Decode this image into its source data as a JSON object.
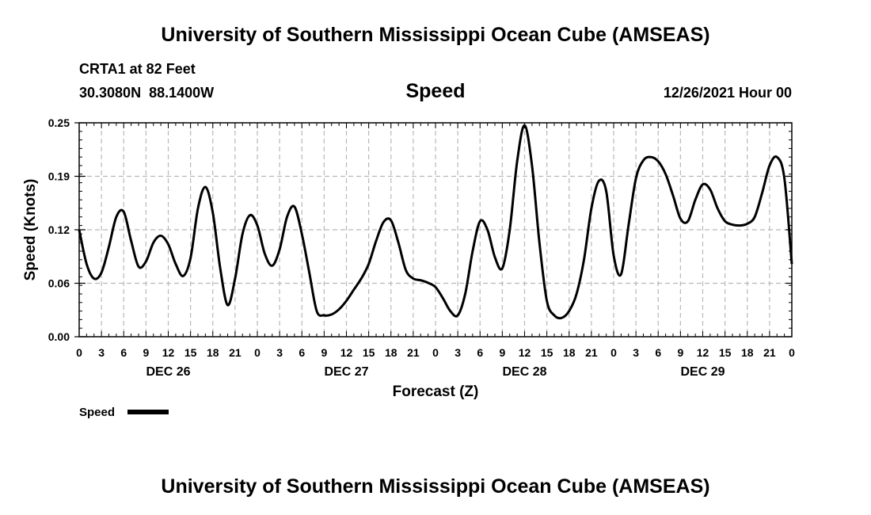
{
  "header": {
    "title_top": "University of Southern Mississippi Ocean Cube (AMSEAS)",
    "station": "CRTA1 at 82 Feet",
    "coords": "30.3080N  88.1400W",
    "variable": "Speed",
    "datetime": "12/26/2021 Hour 00",
    "title_bottom": "University of Southern Mississippi Ocean Cube (AMSEAS)"
  },
  "legend": {
    "label": "Speed"
  },
  "chart_data": {
    "type": "line",
    "title": "Speed",
    "xlabel": "Forecast (Z)",
    "ylabel": "Speed (Knots)",
    "xlim": [
      0,
      96
    ],
    "ylim": [
      0,
      0.25
    ],
    "y_ticks": [
      "0.00",
      "0.06",
      "0.12",
      "0.19",
      "0.25"
    ],
    "y_tick_values": [
      0,
      0.0625,
      0.125,
      0.1875,
      0.25
    ],
    "x_tick_labels": [
      "0",
      "3",
      "6",
      "9",
      "12",
      "15",
      "18",
      "21",
      "0",
      "3",
      "6",
      "9",
      "12",
      "15",
      "18",
      "21",
      "0",
      "3",
      "6",
      "9",
      "12",
      "15",
      "18",
      "21",
      "0",
      "3",
      "6",
      "9",
      "12",
      "15",
      "18",
      "21",
      "0"
    ],
    "day_labels": [
      {
        "label": "DEC 26",
        "hour": 12
      },
      {
        "label": "DEC 27",
        "hour": 36
      },
      {
        "label": "DEC 28",
        "hour": 60
      },
      {
        "label": "DEC 29",
        "hour": 84
      }
    ],
    "grid": true,
    "series": [
      {
        "name": "Speed",
        "color": "#000000",
        "x": [
          0,
          1,
          2,
          3,
          4,
          5,
          6,
          7,
          8,
          9,
          10,
          11,
          12,
          13,
          14,
          15,
          16,
          17,
          18,
          19,
          20,
          21,
          22,
          23,
          24,
          25,
          26,
          27,
          28,
          29,
          30,
          31,
          32,
          33,
          34,
          35,
          36,
          37,
          38,
          39,
          40,
          41,
          42,
          43,
          44,
          45,
          46,
          47,
          48,
          49,
          50,
          51,
          52,
          53,
          54,
          55,
          56,
          57,
          58,
          59,
          60,
          61,
          62,
          63,
          64,
          65,
          66,
          67,
          68,
          69,
          70,
          71,
          72,
          73,
          74,
          75,
          76,
          77,
          78,
          79,
          80,
          81,
          82,
          83,
          84,
          85,
          86,
          87,
          88,
          89,
          90,
          91,
          92,
          93,
          94,
          95,
          96
        ],
        "values": [
          0.125,
          0.085,
          0.068,
          0.075,
          0.105,
          0.14,
          0.146,
          0.112,
          0.082,
          0.088,
          0.11,
          0.118,
          0.108,
          0.085,
          0.071,
          0.092,
          0.15,
          0.175,
          0.145,
          0.08,
          0.037,
          0.068,
          0.12,
          0.142,
          0.13,
          0.097,
          0.083,
          0.102,
          0.14,
          0.152,
          0.12,
          0.075,
          0.03,
          0.025,
          0.026,
          0.032,
          0.042,
          0.055,
          0.068,
          0.085,
          0.112,
          0.134,
          0.136,
          0.11,
          0.078,
          0.068,
          0.066,
          0.063,
          0.058,
          0.045,
          0.03,
          0.025,
          0.05,
          0.1,
          0.135,
          0.125,
          0.093,
          0.08,
          0.125,
          0.205,
          0.247,
          0.2,
          0.11,
          0.042,
          0.025,
          0.022,
          0.03,
          0.05,
          0.09,
          0.15,
          0.182,
          0.17,
          0.095,
          0.073,
          0.13,
          0.185,
          0.206,
          0.21,
          0.205,
          0.19,
          0.165,
          0.138,
          0.135,
          0.16,
          0.178,
          0.172,
          0.15,
          0.135,
          0.131,
          0.13,
          0.132,
          0.14,
          0.168,
          0.2,
          0.21,
          0.185,
          0.085
        ]
      }
    ]
  }
}
